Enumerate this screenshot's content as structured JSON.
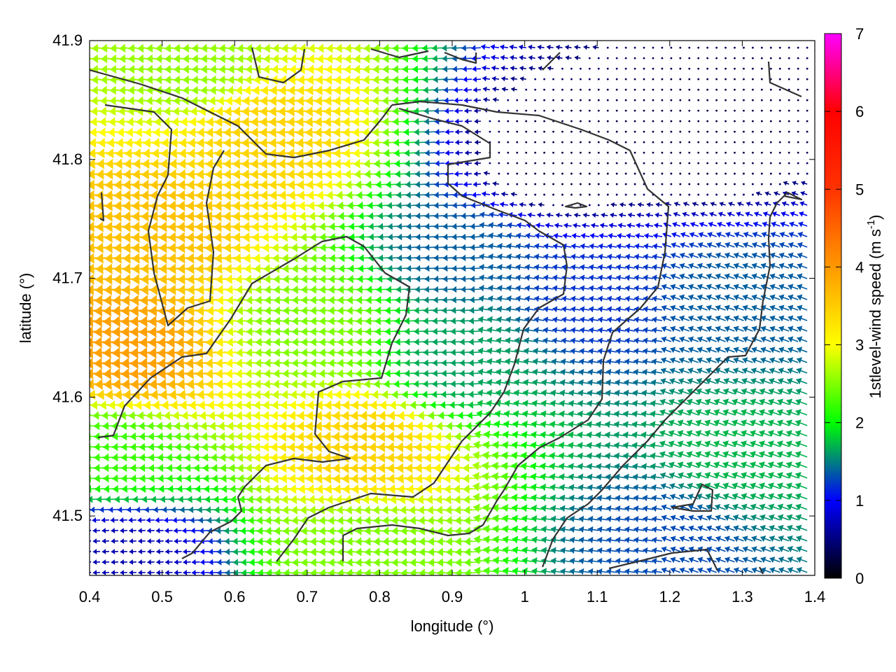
{
  "chart_data": {
    "type": "vector_field",
    "xlabel": "longitude (°)",
    "ylabel": "latitude (°)",
    "colorbar_label_main": "1stlevel-wind speed (m s",
    "colorbar_label_sup": "-1",
    "colorbar_label_end": ")",
    "xlim": [
      0.4,
      1.4
    ],
    "ylim": [
      41.45,
      41.9
    ],
    "x_ticks": [
      0.4,
      0.5,
      0.6,
      0.7,
      0.8,
      0.9,
      1.0,
      1.1,
      1.2,
      1.3,
      1.4
    ],
    "x_tick_labels": [
      "0.4",
      "0.5",
      "0.6",
      "0.7",
      "0.8",
      "0.9",
      "1",
      "1.1",
      "1.2",
      "1.3",
      "1.4"
    ],
    "y_ticks": [
      41.5,
      41.6,
      41.7,
      41.8,
      41.9
    ],
    "y_tick_labels": [
      "41.5",
      "41.6",
      "41.7",
      "41.8",
      "41.9"
    ],
    "color_range": [
      0,
      7
    ],
    "colorbar_ticks": [
      0,
      1,
      2,
      3,
      4,
      5,
      6,
      7
    ],
    "colorbar_tick_labels": [
      "0",
      "1",
      "2",
      "3",
      "4",
      "5",
      "6",
      "7"
    ],
    "colormap": [
      "#000000",
      "#0000ff",
      "#00ff00",
      "#ffff00",
      "#ff9900",
      "#ff0000",
      "#ff00ff"
    ],
    "grid": "dotted",
    "wind_direction": "easterly (vectors pointing west), with southerly component in eastern region",
    "speed_regions": [
      {
        "lon": 0.51,
        "lat": 41.74,
        "speed": 4.2
      },
      {
        "lon": 0.48,
        "lat": 41.64,
        "speed": 4.6
      },
      {
        "lon": 0.66,
        "lat": 41.82,
        "speed": 4.0
      },
      {
        "lon": 0.8,
        "lat": 41.56,
        "speed": 4.0
      },
      {
        "lon": 0.72,
        "lat": 41.66,
        "speed": 2.9
      },
      {
        "lon": 0.8,
        "lat": 41.47,
        "speed": 2.9
      },
      {
        "lon": 0.56,
        "lat": 41.88,
        "speed": 3.0
      },
      {
        "lon": 0.45,
        "lat": 41.55,
        "speed": 2.6
      },
      {
        "lon": 0.92,
        "lat": 41.63,
        "speed": 1.9
      },
      {
        "lon": 0.92,
        "lat": 41.72,
        "speed": 1.6
      },
      {
        "lon": 1.1,
        "lat": 41.68,
        "speed": 1.4
      },
      {
        "lon": 1.3,
        "lat": 41.55,
        "speed": 2.0
      },
      {
        "lon": 1.3,
        "lat": 41.68,
        "speed": 1.6
      },
      {
        "lon": 1.05,
        "lat": 41.8,
        "speed": 0.3
      },
      {
        "lon": 1.25,
        "lat": 41.82,
        "speed": 0.3
      },
      {
        "lon": 0.45,
        "lat": 41.47,
        "speed": 0.8
      },
      {
        "lon": 1.2,
        "lat": 41.48,
        "speed": 1.5
      }
    ]
  }
}
